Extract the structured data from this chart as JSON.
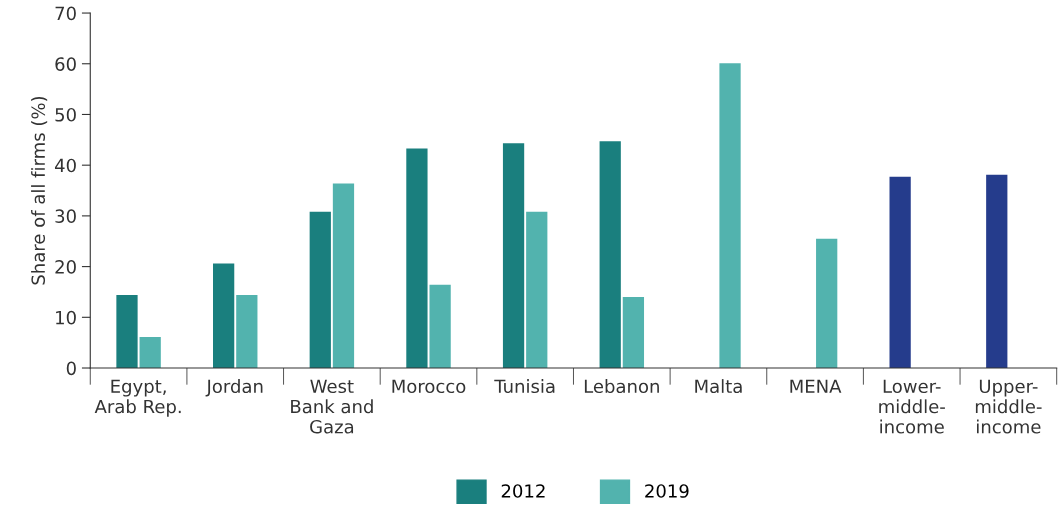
{
  "chart_data": {
    "type": "bar",
    "ylabel": "Share of all firms (%)",
    "categories": [
      "Egypt,\nArab Rep.",
      "Jordan",
      "West\nBank and\nGaza",
      "Morocco",
      "Tunisia",
      "Lebanon",
      "Malta",
      "MENA",
      "Lower-\nmiddle-\nincome",
      "Upper-\nmiddle-\nincome"
    ],
    "series": [
      {
        "name": "2012",
        "color": "#1a7f7e",
        "colors": [
          "#1a7f7e",
          "#1a7f7e",
          "#1a7f7e",
          "#1a7f7e",
          "#1a7f7e",
          "#1a7f7e",
          "#1a7f7e",
          "#1a7f7e",
          "#253c8c",
          "#253c8c"
        ],
        "values": [
          14.4,
          20.6,
          30.8,
          43.3,
          44.3,
          44.7,
          null,
          null,
          37.7,
          38.1
        ]
      },
      {
        "name": "2019",
        "color": "#52b3ae",
        "values": [
          6.1,
          14.4,
          36.4,
          16.4,
          30.8,
          14.0,
          60.1,
          25.5,
          null,
          null
        ]
      }
    ],
    "ylim": [
      0,
      70
    ],
    "yticks": [
      0,
      10,
      20,
      30,
      40,
      50,
      60,
      70
    ],
    "grid": false,
    "legend": "bottom"
  }
}
